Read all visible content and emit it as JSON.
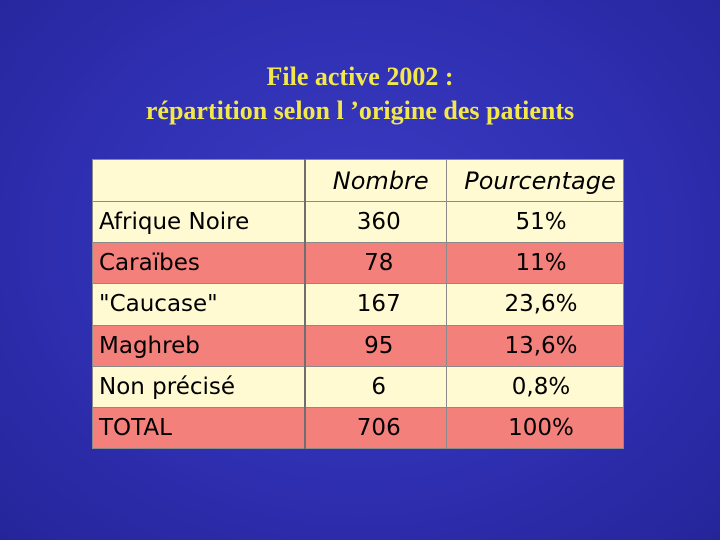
{
  "title": {
    "line1": "File active 2002 :",
    "line2": "répartition selon l ’origine des patients"
  },
  "table": {
    "headers": [
      "",
      "Nombre",
      "Pourcentage"
    ],
    "rows": [
      {
        "label": "Afrique Noire",
        "nombre": "360",
        "pourcentage": "51%"
      },
      {
        "label": "Caraïbes",
        "nombre": "78",
        "pourcentage": "11%"
      },
      {
        "label": "\"Caucase\"",
        "nombre": "167",
        "pourcentage": "23,6%"
      },
      {
        "label": "Maghreb",
        "nombre": "95",
        "pourcentage": "13,6%"
      },
      {
        "label": "Non précisé",
        "nombre": "6",
        "pourcentage": "0,8%"
      },
      {
        "label": "TOTAL",
        "nombre": "706",
        "pourcentage": "100%"
      }
    ]
  },
  "colors": {
    "background": "#2f2fb2",
    "title_text": "#f2e84a",
    "row_light": "#fffad2",
    "row_pink": "#f4807c"
  }
}
